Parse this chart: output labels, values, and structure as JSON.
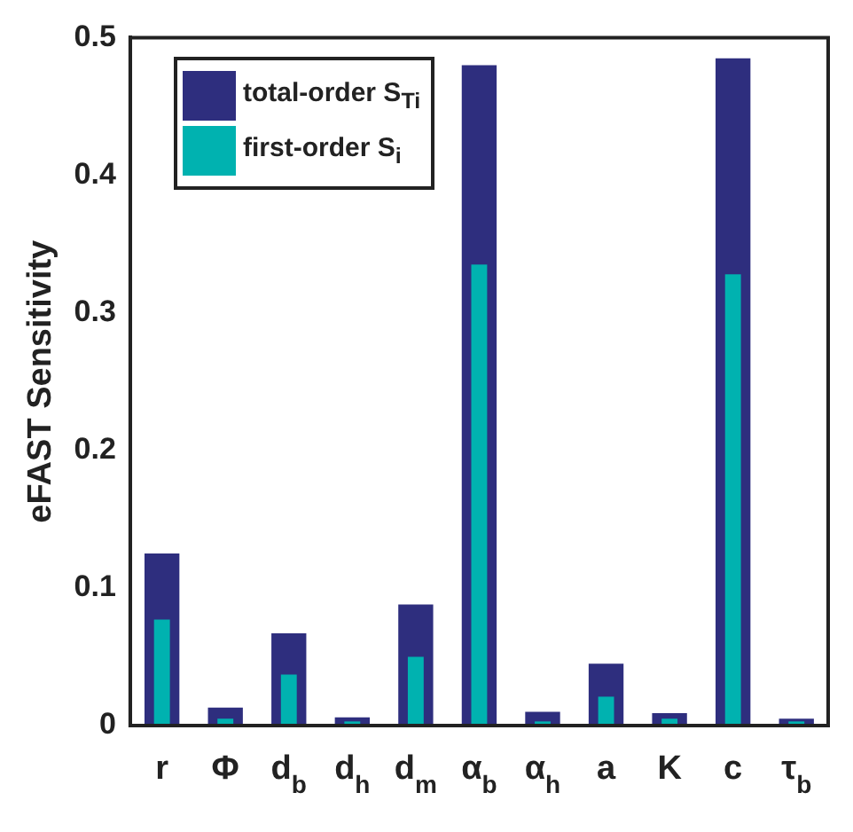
{
  "chart_data": {
    "type": "bar",
    "ylabel": "eFAST Sensitivity",
    "categories": [
      "r",
      "Φ",
      "d$_{b}$",
      "d$_{h}$",
      "d$_{m}$",
      "α$_{b}$",
      "α$_{h}$",
      "a",
      "K",
      "c",
      "τ$_{b}$"
    ],
    "series": [
      {
        "name": "total-order S$_{Ti}$",
        "color": "#2e2e7e",
        "values": [
          0.125,
          0.013,
          0.067,
          0.006,
          0.088,
          0.48,
          0.01,
          0.045,
          0.009,
          0.485,
          0.005
        ]
      },
      {
        "name": "first-order S$_{i}$",
        "color": "#00b2b0",
        "values": [
          0.077,
          0.005,
          0.037,
          0.003,
          0.05,
          0.335,
          0.003,
          0.021,
          0.005,
          0.328,
          0.003
        ]
      }
    ],
    "ylim": [
      0,
      0.5
    ],
    "yticks": [
      0,
      0.1,
      0.2,
      0.3,
      0.4,
      0.5
    ],
    "grid": false,
    "legend": "top left"
  }
}
